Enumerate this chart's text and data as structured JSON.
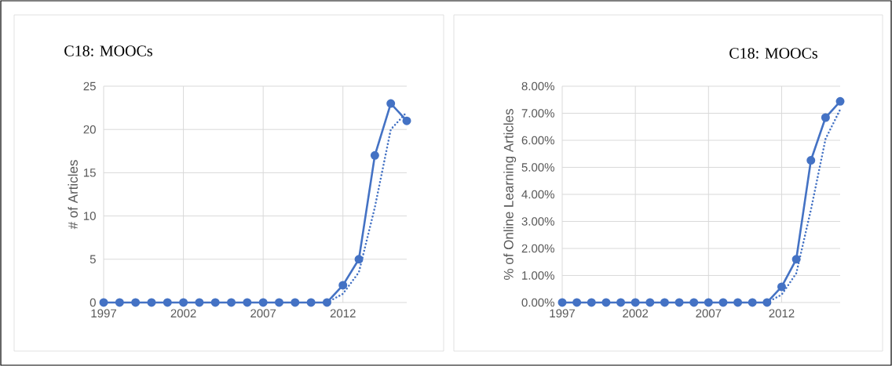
{
  "chart_data": [
    {
      "type": "line",
      "title": "C18: MOOCs",
      "ylabel": "# of Articles",
      "x": [
        1997,
        1998,
        1999,
        2000,
        2001,
        2002,
        2003,
        2004,
        2005,
        2006,
        2007,
        2008,
        2009,
        2010,
        2011,
        2012,
        2013,
        2014,
        2015,
        2016
      ],
      "xlim": [
        1997,
        2016
      ],
      "xticks": [
        1997,
        2002,
        2007,
        2012
      ],
      "ylim": [
        0,
        25
      ],
      "yticks": [
        0,
        5,
        10,
        15,
        20,
        25
      ],
      "grid": true,
      "marker": "circle",
      "series": [
        {
          "color": "#4472c4",
          "values": [
            0,
            0,
            0,
            0,
            0,
            0,
            0,
            0,
            0,
            0,
            0,
            0,
            0,
            0,
            0,
            2,
            5,
            17,
            23,
            21
          ]
        },
        {
          "color": "#4472c4",
          "x": [
            2011,
            2012,
            2013,
            2014,
            2015,
            2016
          ],
          "values": [
            0,
            1,
            3.5,
            11,
            20,
            22
          ],
          "marker": "none",
          "line_style": "dotted"
        }
      ]
    },
    {
      "type": "line",
      "title": "C18: MOOCs",
      "ylabel": "% of Online Learning Articles",
      "x": [
        1997,
        1998,
        1999,
        2000,
        2001,
        2002,
        2003,
        2004,
        2005,
        2006,
        2007,
        2008,
        2009,
        2010,
        2011,
        2012,
        2013,
        2014,
        2015,
        2016
      ],
      "xlim": [
        1997,
        2016
      ],
      "xticks": [
        1997,
        2002,
        2007,
        2012
      ],
      "ylim": [
        0,
        8
      ],
      "yticks": [
        {
          "value": 0,
          "label": "0.00%"
        },
        {
          "value": 1,
          "label": "1.00%"
        },
        {
          "value": 2,
          "label": "2.00%"
        },
        {
          "value": 3,
          "label": "3.00%"
        },
        {
          "value": 4,
          "label": "4.00%"
        },
        {
          "value": 5,
          "label": "5.00%"
        },
        {
          "value": 6,
          "label": "6.00%"
        },
        {
          "value": 7,
          "label": "7.00%"
        },
        {
          "value": 8,
          "label": "8.00%"
        }
      ],
      "grid": true,
      "marker": "circle",
      "series": [
        {
          "color": "#4472c4",
          "values": [
            0,
            0,
            0,
            0,
            0,
            0,
            0,
            0,
            0,
            0,
            0,
            0,
            0,
            0,
            0,
            0.58,
            1.6,
            5.26,
            6.84,
            7.44
          ]
        },
        {
          "color": "#4472c4",
          "x": [
            2011,
            2012,
            2013,
            2014,
            2015,
            2016
          ],
          "values": [
            0,
            0.29,
            1.08,
            3.43,
            6.05,
            7.14
          ],
          "marker": "none",
          "line_style": "dotted"
        }
      ]
    }
  ]
}
